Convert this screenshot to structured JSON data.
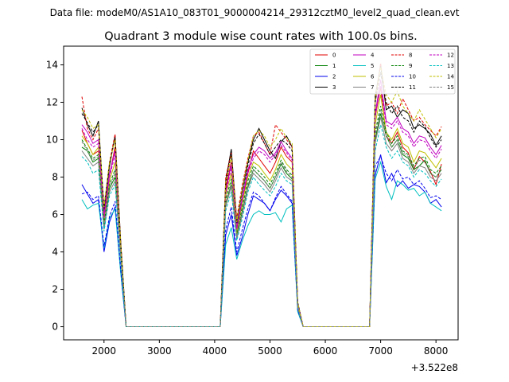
{
  "supertitle": "Data file: modeM0/AS1A10_083T01_9000004214_29312cztM0_level2_quad_clean.evt",
  "chart_data": {
    "type": "line",
    "title": "Quadrant 3 module wise count rates with 100.0s bins.",
    "xlabel": "",
    "ylabel": "",
    "x_offset_label": "+3.522e8",
    "xlim": [
      1270,
      8400
    ],
    "ylim": [
      -0.7,
      15.0
    ],
    "x_ticks": [
      2000,
      3000,
      4000,
      5000,
      6000,
      7000,
      8000
    ],
    "y_ticks": [
      0,
      2,
      4,
      6,
      8,
      10,
      12,
      14
    ],
    "grid": false,
    "legend": "top-right",
    "x": [
      1600,
      1700,
      1800,
      1900,
      2000,
      2100,
      2200,
      2300,
      2400,
      2500,
      2600,
      2700,
      2800,
      2900,
      3000,
      3100,
      3200,
      3300,
      3400,
      3500,
      3600,
      3700,
      3800,
      3900,
      4000,
      4100,
      4200,
      4300,
      4400,
      4500,
      4600,
      4700,
      4800,
      4900,
      5000,
      5100,
      5200,
      5300,
      5400,
      5500,
      5600,
      5700,
      5800,
      5900,
      6000,
      6100,
      6200,
      6300,
      6400,
      6500,
      6600,
      6700,
      6800,
      6900,
      7000,
      7100,
      7200,
      7300,
      7400,
      7500,
      7600,
      7700,
      7800,
      7900,
      8000,
      8100
    ],
    "series": [
      {
        "name": "0",
        "color": "#e00000",
        "dash": false,
        "values": [
          10.5,
          9.8,
          9.2,
          9.4,
          5.9,
          8.1,
          9.6,
          4.2,
          0,
          0,
          0,
          0,
          0,
          0,
          0,
          0,
          0,
          0,
          0,
          0,
          0,
          0,
          0,
          0,
          0,
          0,
          7.4,
          8.8,
          5.2,
          6.8,
          8.2,
          9.4,
          9.0,
          8.6,
          8.2,
          8.8,
          9.6,
          9.1,
          8.8,
          1.2,
          0,
          0,
          0,
          0,
          0,
          0,
          0,
          0,
          0,
          0,
          0,
          0,
          0,
          11.2,
          12.8,
          10.2,
          9.8,
          10.4,
          9.6,
          9.3,
          8.4,
          9.1,
          8.8,
          8.3,
          7.6,
          8.7
        ]
      },
      {
        "name": "1",
        "color": "#008000",
        "dash": false,
        "values": [
          9.6,
          9.4,
          8.8,
          9.0,
          5.4,
          7.4,
          8.0,
          3.8,
          0,
          0,
          0,
          0,
          0,
          0,
          0,
          0,
          0,
          0,
          0,
          0,
          0,
          0,
          0,
          0,
          0,
          0,
          6.6,
          7.6,
          4.8,
          6.2,
          7.5,
          8.4,
          8.1,
          7.8,
          7.4,
          8.0,
          8.7,
          8.2,
          7.9,
          1.1,
          0,
          0,
          0,
          0,
          0,
          0,
          0,
          0,
          0,
          0,
          0,
          0,
          0,
          10.0,
          11.4,
          10.2,
          9.6,
          10.0,
          9.2,
          9.0,
          8.4,
          8.6,
          8.9,
          8.2,
          8.0,
          8.4
        ]
      },
      {
        "name": "2",
        "color": "#0000ee",
        "dash": false,
        "values": [
          7.6,
          7.1,
          6.6,
          6.8,
          4.0,
          5.6,
          6.4,
          3.0,
          0,
          0,
          0,
          0,
          0,
          0,
          0,
          0,
          0,
          0,
          0,
          0,
          0,
          0,
          0,
          0,
          0,
          0,
          4.9,
          6.0,
          3.8,
          4.8,
          6.0,
          7.0,
          6.8,
          6.6,
          6.2,
          6.8,
          7.3,
          7.0,
          6.6,
          0.9,
          0,
          0,
          0,
          0,
          0,
          0,
          0,
          0,
          0,
          0,
          0,
          0,
          0,
          8.1,
          9.2,
          7.7,
          8.2,
          7.5,
          7.8,
          7.4,
          7.6,
          7.5,
          7.2,
          6.6,
          6.8,
          6.4
        ]
      },
      {
        "name": "3",
        "color": "#000000",
        "dash": false,
        "values": [
          11.7,
          10.8,
          10.2,
          11.0,
          6.2,
          8.6,
          10.2,
          4.6,
          0,
          0,
          0,
          0,
          0,
          0,
          0,
          0,
          0,
          0,
          0,
          0,
          0,
          0,
          0,
          0,
          0,
          0,
          7.8,
          9.5,
          5.6,
          7.3,
          8.8,
          10.0,
          10.6,
          10.0,
          9.4,
          9.0,
          9.9,
          10.2,
          9.6,
          1.3,
          0,
          0,
          0,
          0,
          0,
          0,
          0,
          0,
          0,
          0,
          0,
          0,
          0,
          12.3,
          14.0,
          11.6,
          11.8,
          11.2,
          11.6,
          11.4,
          10.6,
          10.8,
          10.6,
          10.3,
          9.7,
          10.2
        ]
      },
      {
        "name": "4",
        "color": "#c000c0",
        "dash": false,
        "values": [
          10.8,
          10.4,
          9.8,
          10.0,
          6.0,
          8.2,
          9.4,
          4.2,
          0,
          0,
          0,
          0,
          0,
          0,
          0,
          0,
          0,
          0,
          0,
          0,
          0,
          0,
          0,
          0,
          0,
          0,
          7.2,
          8.7,
          5.3,
          6.9,
          8.4,
          9.2,
          9.6,
          9.4,
          9.0,
          9.3,
          9.9,
          9.4,
          9.0,
          1.2,
          0,
          0,
          0,
          0,
          0,
          0,
          0,
          0,
          0,
          0,
          0,
          0,
          0,
          11.4,
          13.2,
          11.0,
          10.8,
          11.2,
          10.6,
          10.4,
          9.8,
          10.2,
          10.1,
          9.6,
          9.2,
          9.7
        ]
      },
      {
        "name": "5",
        "color": "#00bfbf",
        "dash": false,
        "values": [
          6.8,
          6.3,
          6.5,
          6.6,
          4.2,
          5.8,
          6.3,
          2.9,
          0,
          0,
          0,
          0,
          0,
          0,
          0,
          0,
          0,
          0,
          0,
          0,
          0,
          0,
          0,
          0,
          0,
          0,
          4.4,
          5.3,
          3.6,
          4.6,
          5.4,
          6.0,
          6.2,
          6.0,
          6.0,
          6.1,
          5.6,
          6.3,
          6.5,
          0.8,
          0,
          0,
          0,
          0,
          0,
          0,
          0,
          0,
          0,
          0,
          0,
          0,
          0,
          7.9,
          8.8,
          7.5,
          6.8,
          7.8,
          7.6,
          7.3,
          7.4,
          7.0,
          7.2,
          6.6,
          6.4,
          6.2
        ]
      },
      {
        "name": "6",
        "color": "#bfbf00",
        "dash": false,
        "values": [
          10.2,
          9.8,
          9.2,
          9.6,
          5.6,
          7.8,
          8.8,
          4.0,
          0,
          0,
          0,
          0,
          0,
          0,
          0,
          0,
          0,
          0,
          0,
          0,
          0,
          0,
          0,
          0,
          0,
          0,
          7.0,
          8.2,
          5.0,
          6.6,
          8.0,
          8.8,
          8.6,
          8.2,
          7.8,
          8.4,
          9.2,
          8.7,
          8.4,
          1.1,
          0,
          0,
          0,
          0,
          0,
          0,
          0,
          0,
          0,
          0,
          0,
          0,
          0,
          10.8,
          12.4,
          10.4,
          10.0,
          10.6,
          9.8,
          9.6,
          8.8,
          9.4,
          9.3,
          8.9,
          8.5,
          9.0
        ]
      },
      {
        "name": "7",
        "color": "#808080",
        "dash": false,
        "values": [
          9.4,
          9.0,
          8.6,
          8.8,
          5.2,
          7.2,
          7.8,
          3.7,
          0,
          0,
          0,
          0,
          0,
          0,
          0,
          0,
          0,
          0,
          0,
          0,
          0,
          0,
          0,
          0,
          0,
          0,
          6.4,
          7.5,
          4.7,
          6.0,
          7.4,
          8.2,
          7.9,
          7.6,
          7.2,
          7.8,
          8.5,
          8.0,
          7.8,
          1.0,
          0,
          0,
          0,
          0,
          0,
          0,
          0,
          0,
          0,
          0,
          0,
          0,
          0,
          9.8,
          11.2,
          9.8,
          9.4,
          9.8,
          9.0,
          8.8,
          8.2,
          8.6,
          8.5,
          8.0,
          7.8,
          8.2
        ]
      },
      {
        "name": "8",
        "color": "#e00000",
        "dash": true,
        "values": [
          12.3,
          10.6,
          10.0,
          10.6,
          6.4,
          8.8,
          10.3,
          4.6,
          0,
          0,
          0,
          0,
          0,
          0,
          0,
          0,
          0,
          0,
          0,
          0,
          0,
          0,
          0,
          0,
          0,
          0,
          8.0,
          9.3,
          5.8,
          7.6,
          9.0,
          10.2,
          10.4,
          9.8,
          9.2,
          10.8,
          10.4,
          10.0,
          9.6,
          1.3,
          0,
          0,
          0,
          0,
          0,
          0,
          0,
          0,
          0,
          0,
          0,
          0,
          0,
          12.0,
          14.1,
          11.8,
          12.0,
          11.4,
          12.2,
          11.6,
          11.0,
          11.2,
          10.8,
          10.5,
          10.2,
          10.7
        ]
      },
      {
        "name": "9",
        "color": "#008000",
        "dash": true,
        "values": [
          10.0,
          9.5,
          9.0,
          9.2,
          5.5,
          7.6,
          8.4,
          3.9,
          0,
          0,
          0,
          0,
          0,
          0,
          0,
          0,
          0,
          0,
          0,
          0,
          0,
          0,
          0,
          0,
          0,
          0,
          6.8,
          7.9,
          4.9,
          6.4,
          7.8,
          8.6,
          8.3,
          8.0,
          7.6,
          8.2,
          8.9,
          8.4,
          8.1,
          1.1,
          0,
          0,
          0,
          0,
          0,
          0,
          0,
          0,
          0,
          0,
          0,
          0,
          0,
          10.4,
          11.8,
          10.4,
          9.8,
          10.2,
          9.4,
          9.2,
          8.6,
          9.0,
          9.1,
          8.4,
          8.2,
          8.6
        ]
      },
      {
        "name": "10",
        "color": "#0000ee",
        "dash": true,
        "values": [
          7.1,
          7.2,
          6.8,
          7.0,
          4.3,
          5.9,
          6.7,
          3.1,
          0,
          0,
          0,
          0,
          0,
          0,
          0,
          0,
          0,
          0,
          0,
          0,
          0,
          0,
          0,
          0,
          0,
          0,
          5.2,
          6.4,
          4.0,
          5.2,
          6.3,
          7.2,
          7.0,
          6.6,
          6.2,
          6.9,
          7.5,
          7.1,
          6.7,
          0.9,
          0,
          0,
          0,
          0,
          0,
          0,
          0,
          0,
          0,
          0,
          0,
          0,
          0,
          8.6,
          9.1,
          8.2,
          7.8,
          8.4,
          7.9,
          8.0,
          7.6,
          7.8,
          7.4,
          6.9,
          7.0,
          6.8
        ]
      },
      {
        "name": "11",
        "color": "#000000",
        "dash": true,
        "values": [
          11.4,
          10.9,
          10.4,
          10.8,
          6.3,
          8.7,
          10.1,
          4.5,
          0,
          0,
          0,
          0,
          0,
          0,
          0,
          0,
          0,
          0,
          0,
          0,
          0,
          0,
          0,
          0,
          0,
          0,
          7.6,
          9.2,
          5.5,
          7.2,
          8.6,
          9.8,
          10.3,
          9.8,
          9.2,
          9.6,
          10.0,
          9.8,
          9.4,
          1.3,
          0,
          0,
          0,
          0,
          0,
          0,
          0,
          0,
          0,
          0,
          0,
          0,
          0,
          12.0,
          13.6,
          12.0,
          11.4,
          11.8,
          11.2,
          11.0,
          10.4,
          11.0,
          10.7,
          10.1,
          9.6,
          10.0
        ]
      },
      {
        "name": "12",
        "color": "#c000c0",
        "dash": true,
        "values": [
          10.6,
          10.0,
          9.6,
          9.8,
          5.8,
          8.0,
          9.2,
          4.1,
          0,
          0,
          0,
          0,
          0,
          0,
          0,
          0,
          0,
          0,
          0,
          0,
          0,
          0,
          0,
          0,
          0,
          0,
          7.1,
          8.5,
          5.2,
          6.8,
          8.2,
          9.0,
          9.4,
          9.2,
          8.8,
          9.2,
          9.7,
          9.3,
          8.9,
          1.2,
          0,
          0,
          0,
          0,
          0,
          0,
          0,
          0,
          0,
          0,
          0,
          0,
          0,
          11.2,
          12.9,
          10.8,
          10.6,
          11.0,
          10.4,
          10.2,
          9.6,
          10.0,
          9.9,
          9.4,
          9.0,
          9.5
        ]
      },
      {
        "name": "13",
        "color": "#00bfbf",
        "dash": true,
        "values": [
          9.1,
          8.8,
          8.2,
          8.4,
          5.1,
          7.0,
          7.6,
          3.6,
          0,
          0,
          0,
          0,
          0,
          0,
          0,
          0,
          0,
          0,
          0,
          0,
          0,
          0,
          0,
          0,
          0,
          0,
          6.2,
          7.2,
          4.6,
          5.8,
          7.2,
          8.0,
          7.6,
          7.3,
          7.0,
          7.5,
          8.2,
          7.8,
          7.6,
          1.0,
          0,
          0,
          0,
          0,
          0,
          0,
          0,
          0,
          0,
          0,
          0,
          0,
          0,
          9.4,
          10.8,
          9.6,
          9.0,
          9.4,
          8.8,
          8.6,
          8.0,
          8.4,
          8.2,
          7.8,
          7.5,
          7.9
        ]
      },
      {
        "name": "14",
        "color": "#bfbf00",
        "dash": true,
        "values": [
          11.6,
          11.2,
          10.6,
          10.8,
          6.4,
          8.8,
          10.0,
          4.5,
          0,
          0,
          0,
          0,
          0,
          0,
          0,
          0,
          0,
          0,
          0,
          0,
          0,
          0,
          0,
          0,
          0,
          0,
          7.7,
          9.1,
          5.6,
          7.4,
          8.9,
          10.2,
          10.5,
          10.2,
          9.6,
          10.0,
          10.6,
          10.1,
          9.8,
          1.3,
          0,
          0,
          0,
          0,
          0,
          0,
          0,
          0,
          0,
          0,
          0,
          0,
          0,
          12.2,
          13.9,
          12.4,
          12.0,
          12.6,
          11.8,
          11.4,
          11.0,
          11.6,
          11.1,
          10.6,
          10.1,
          10.6
        ]
      },
      {
        "name": "15",
        "color": "#808080",
        "dash": true,
        "values": [
          9.9,
          9.4,
          8.9,
          9.1,
          5.4,
          7.5,
          8.2,
          3.8,
          0,
          0,
          0,
          0,
          0,
          0,
          0,
          0,
          0,
          0,
          0,
          0,
          0,
          0,
          0,
          0,
          0,
          0,
          6.6,
          7.7,
          4.8,
          6.2,
          7.6,
          8.4,
          8.1,
          7.8,
          7.4,
          8.0,
          8.8,
          8.3,
          8.0,
          1.1,
          0,
          0,
          0,
          0,
          0,
          0,
          0,
          0,
          0,
          0,
          0,
          0,
          0,
          10.2,
          11.6,
          10.2,
          9.6,
          10.0,
          9.3,
          9.1,
          8.5,
          8.9,
          8.8,
          8.2,
          8.0,
          8.4
        ]
      }
    ]
  }
}
